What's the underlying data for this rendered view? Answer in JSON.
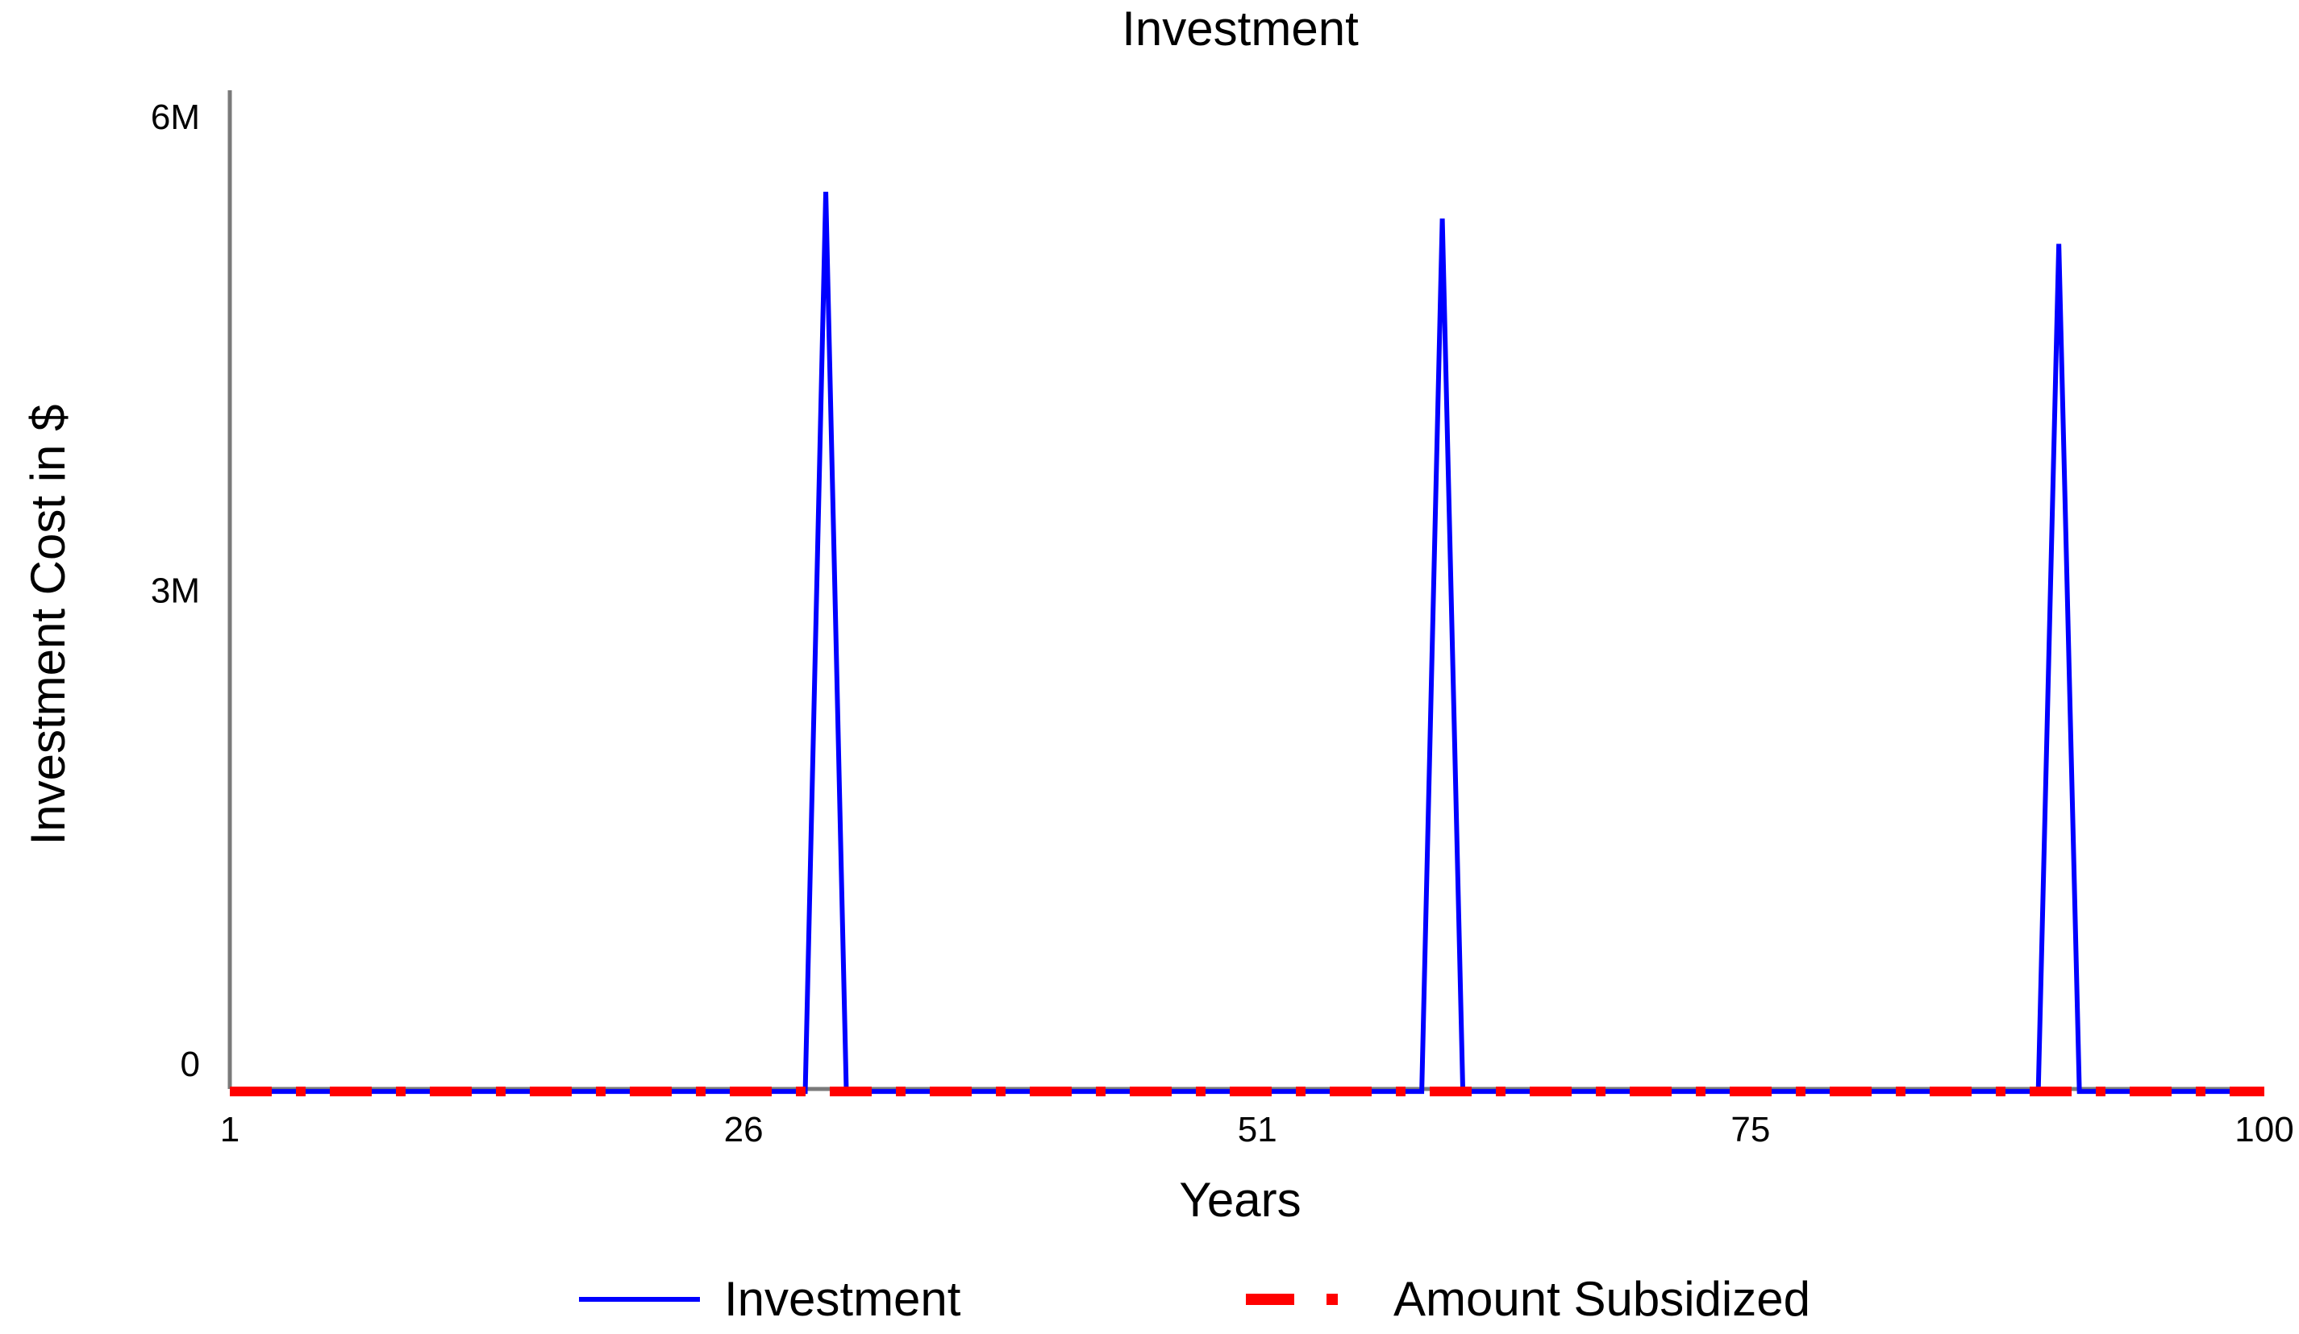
{
  "chart_data": {
    "type": "line",
    "title": "Investment",
    "xlabel": "Years",
    "ylabel": "Investment Cost in $",
    "xlim": [
      1,
      100
    ],
    "ylim": [
      0,
      6000000
    ],
    "x_ticks": [
      {
        "value": 1,
        "label": "1"
      },
      {
        "value": 26,
        "label": "26"
      },
      {
        "value": 51,
        "label": "51"
      },
      {
        "value": 75,
        "label": "75"
      },
      {
        "value": 100,
        "label": "100"
      }
    ],
    "y_ticks": [
      {
        "value": 0,
        "label": "0"
      },
      {
        "value": 3000000,
        "label": "3M"
      },
      {
        "value": 6000000,
        "label": "6M"
      }
    ],
    "grid": false,
    "legend_position": "bottom",
    "series": [
      {
        "name": "Investment",
        "color": "#0000ff",
        "style": "solid",
        "x": [
          1,
          29,
          30,
          31,
          59,
          60,
          61,
          89,
          90,
          91,
          100
        ],
        "y": [
          -200000,
          -200000,
          5500000,
          -200000,
          -200000,
          5330000,
          -200000,
          -200000,
          5170000,
          -200000,
          -200000
        ]
      },
      {
        "name": "Amount Subsidized",
        "color": "#ff0000",
        "style": "dash-dot",
        "x": [
          1,
          100
        ],
        "y": [
          -200000,
          -200000
        ]
      }
    ]
  }
}
